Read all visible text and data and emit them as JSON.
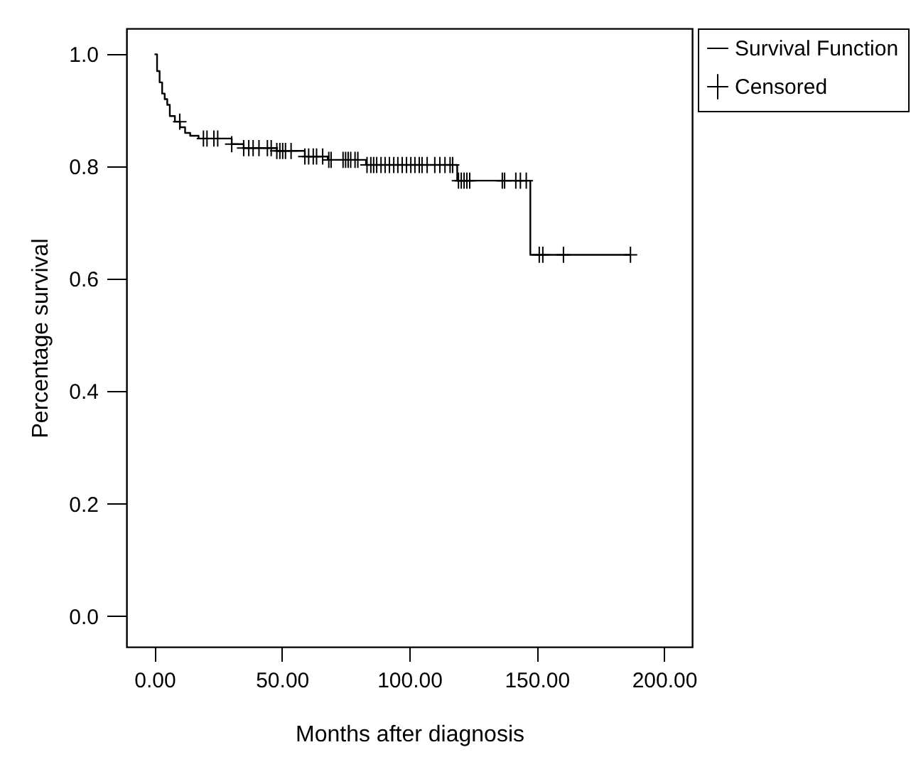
{
  "chart_data": {
    "type": "step",
    "xlabel": "Months after diagnosis",
    "ylabel": "Percentage survival",
    "xlim": [
      -11,
      211
    ],
    "ylim": [
      -0.055,
      1.046
    ],
    "xticks": [
      {
        "value": 0,
        "label": "0.00"
      },
      {
        "value": 50,
        "label": "50.00"
      },
      {
        "value": 100,
        "label": "100.00"
      },
      {
        "value": 150,
        "label": "150.00"
      },
      {
        "value": 200,
        "label": "200.00"
      }
    ],
    "yticks": [
      {
        "value": 0,
        "label": "0.0"
      },
      {
        "value": 0.2,
        "label": "0.2"
      },
      {
        "value": 0.4,
        "label": "0.4"
      },
      {
        "value": 0.6,
        "label": "0.6"
      },
      {
        "value": 0.8,
        "label": "0.8"
      },
      {
        "value": 1,
        "label": "1.0"
      }
    ],
    "grid": false,
    "legend": "top right",
    "series": [
      {
        "name": "Survival Function",
        "color": "#000000",
        "x": [
          0,
          1,
          2,
          3,
          4,
          5,
          6,
          8,
          10,
          12,
          14,
          17.3,
          30.3,
          35,
          48,
          59,
          68,
          83,
          118.8,
          147.5,
          186.8
        ],
        "values": [
          1.0,
          0.97,
          0.95,
          0.93,
          0.92,
          0.91,
          0.89,
          0.88,
          0.87,
          0.86,
          0.855,
          0.85,
          0.84,
          0.833,
          0.828,
          0.818,
          0.812,
          0.803,
          0.775,
          0.643,
          0.643
        ]
      },
      {
        "name": "Censored",
        "type": "scatter",
        "marker": "cross",
        "color": "#000000",
        "x": [
          9.9,
          19.2,
          20.6,
          23.3,
          24.8,
          30.3,
          35,
          37,
          38.7,
          41,
          44.3,
          45.8,
          48,
          49.2,
          50.3,
          51.4,
          53.6,
          59,
          60.5,
          62.3,
          63.6,
          66,
          68.4,
          69.3,
          74,
          75,
          76,
          77,
          78.7,
          79.8,
          83.4,
          84.9,
          86,
          87.2,
          88.9,
          90.5,
          92.2,
          93.9,
          95.5,
          97.2,
          98.9,
          100.6,
          102.2,
          103.9,
          105,
          107,
          110,
          112,
          114,
          116,
          117,
          119.3,
          120.4,
          121.5,
          122.6,
          123.7,
          136.5,
          137.4,
          141.8,
          143.6,
          145.9,
          151,
          152.4,
          160.5,
          186.8
        ],
        "values": [
          0.88,
          0.85,
          0.85,
          0.85,
          0.85,
          0.84,
          0.833,
          0.833,
          0.833,
          0.833,
          0.833,
          0.833,
          0.828,
          0.828,
          0.828,
          0.828,
          0.828,
          0.818,
          0.818,
          0.818,
          0.818,
          0.818,
          0.812,
          0.812,
          0.812,
          0.812,
          0.812,
          0.812,
          0.812,
          0.812,
          0.803,
          0.803,
          0.803,
          0.803,
          0.803,
          0.803,
          0.803,
          0.803,
          0.803,
          0.803,
          0.803,
          0.803,
          0.803,
          0.803,
          0.803,
          0.803,
          0.803,
          0.803,
          0.803,
          0.803,
          0.803,
          0.775,
          0.775,
          0.775,
          0.775,
          0.775,
          0.775,
          0.775,
          0.775,
          0.775,
          0.775,
          0.643,
          0.643,
          0.643,
          0.643
        ]
      }
    ]
  }
}
